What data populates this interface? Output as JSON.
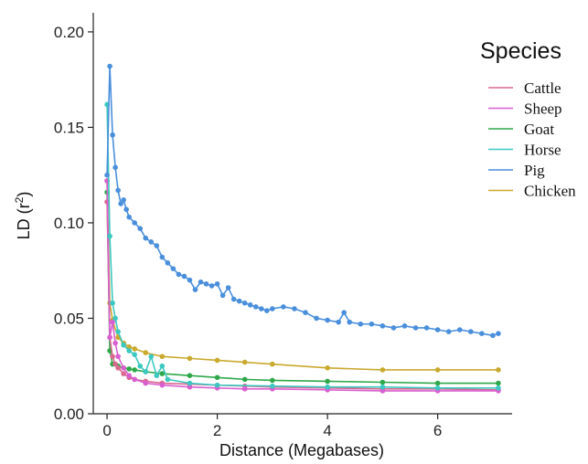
{
  "chart_data": {
    "type": "line",
    "xlabel": "Distance (Megabases)",
    "ylabel": "LD (r²)",
    "ylabel_main": "LD (r",
    "ylabel_sup": "2",
    "ylabel_close": ")",
    "xlim": [
      -0.25,
      7.35
    ],
    "ylim": [
      0,
      0.21
    ],
    "x_ticks": [
      0,
      2,
      4,
      6
    ],
    "y_ticks": [
      0.0,
      0.05,
      0.1,
      0.15,
      0.2
    ],
    "x_tick_labels": [
      "0",
      "2",
      "4",
      "6"
    ],
    "y_tick_labels": [
      "0.00",
      "0.05",
      "0.10",
      "0.15",
      "0.20"
    ],
    "grid": false,
    "legend": {
      "title": "Species",
      "placement": "right"
    },
    "series": [
      {
        "name": "Cattle",
        "color": "#d9688f",
        "x": [
          0,
          0.05,
          0.1,
          0.15,
          0.2,
          0.3,
          0.4,
          0.5,
          0.7,
          1.0,
          1.5,
          2.0,
          2.5,
          3.0,
          4.0,
          5.0,
          6.0,
          7.1
        ],
        "y": [
          0.111,
          0.04,
          0.03,
          0.026,
          0.024,
          0.021,
          0.019,
          0.018,
          0.017,
          0.016,
          0.0155,
          0.015,
          0.0145,
          0.014,
          0.0135,
          0.013,
          0.013,
          0.0125
        ]
      },
      {
        "name": "Sheep",
        "color": "#d95fd0",
        "x": [
          0,
          0.05,
          0.1,
          0.15,
          0.2,
          0.3,
          0.4,
          0.5,
          0.7,
          1.0,
          1.5,
          2.0,
          2.5,
          3.0,
          4.0,
          5.0,
          6.0,
          7.1
        ],
        "y": [
          0.122,
          0.04,
          0.048,
          0.037,
          0.03,
          0.024,
          0.02,
          0.018,
          0.016,
          0.015,
          0.014,
          0.0135,
          0.013,
          0.013,
          0.0125,
          0.012,
          0.012,
          0.012
        ]
      },
      {
        "name": "Goat",
        "color": "#2ea84a",
        "x": [
          0,
          0.05,
          0.1,
          0.2,
          0.3,
          0.4,
          0.5,
          0.7,
          1.0,
          1.5,
          2.0,
          2.5,
          3.0,
          4.0,
          5.0,
          6.0,
          7.1
        ],
        "y": [
          0.116,
          0.033,
          0.026,
          0.025,
          0.024,
          0.0235,
          0.023,
          0.022,
          0.021,
          0.02,
          0.019,
          0.018,
          0.0175,
          0.017,
          0.0165,
          0.016,
          0.016
        ]
      },
      {
        "name": "Horse",
        "color": "#3cc8c0",
        "x": [
          0,
          0.05,
          0.1,
          0.15,
          0.2,
          0.3,
          0.4,
          0.5,
          0.6,
          0.7,
          0.8,
          0.9,
          1.0,
          1.1,
          1.5,
          2.0,
          3.0,
          4.0,
          5.0,
          6.0,
          7.1
        ],
        "y": [
          0.162,
          0.093,
          0.058,
          0.05,
          0.043,
          0.036,
          0.033,
          0.031,
          0.025,
          0.022,
          0.03,
          0.02,
          0.025,
          0.018,
          0.016,
          0.015,
          0.0145,
          0.014,
          0.014,
          0.0135,
          0.0135
        ]
      },
      {
        "name": "Pig",
        "color": "#4a8fdc",
        "x": [
          0,
          0.05,
          0.1,
          0.15,
          0.2,
          0.25,
          0.3,
          0.35,
          0.4,
          0.5,
          0.6,
          0.7,
          0.8,
          0.9,
          1.0,
          1.1,
          1.2,
          1.3,
          1.4,
          1.5,
          1.6,
          1.7,
          1.8,
          1.9,
          2.0,
          2.1,
          2.2,
          2.3,
          2.4,
          2.5,
          2.6,
          2.7,
          2.8,
          2.9,
          3.0,
          3.2,
          3.4,
          3.6,
          3.8,
          4.0,
          4.2,
          4.3,
          4.4,
          4.6,
          4.8,
          5.0,
          5.2,
          5.4,
          5.6,
          5.8,
          6.0,
          6.2,
          6.4,
          6.6,
          6.8,
          7.0,
          7.1
        ],
        "y": [
          0.125,
          0.182,
          0.146,
          0.129,
          0.117,
          0.11,
          0.112,
          0.107,
          0.103,
          0.1,
          0.097,
          0.092,
          0.09,
          0.088,
          0.082,
          0.079,
          0.076,
          0.073,
          0.072,
          0.07,
          0.065,
          0.069,
          0.068,
          0.067,
          0.068,
          0.062,
          0.066,
          0.06,
          0.059,
          0.058,
          0.057,
          0.056,
          0.055,
          0.054,
          0.055,
          0.056,
          0.055,
          0.053,
          0.05,
          0.049,
          0.048,
          0.053,
          0.048,
          0.047,
          0.047,
          0.046,
          0.045,
          0.046,
          0.045,
          0.045,
          0.044,
          0.043,
          0.044,
          0.043,
          0.042,
          0.041,
          0.042
        ]
      },
      {
        "name": "Chicken",
        "color": "#c9a92e",
        "x": [
          0,
          0.05,
          0.1,
          0.2,
          0.3,
          0.4,
          0.5,
          0.7,
          1.0,
          1.5,
          2.0,
          2.5,
          3.0,
          4.0,
          5.0,
          6.0,
          7.1
        ],
        "y": [
          0.122,
          0.058,
          0.049,
          0.04,
          0.037,
          0.035,
          0.034,
          0.032,
          0.03,
          0.029,
          0.028,
          0.027,
          0.026,
          0.024,
          0.023,
          0.023,
          0.023
        ]
      }
    ]
  }
}
